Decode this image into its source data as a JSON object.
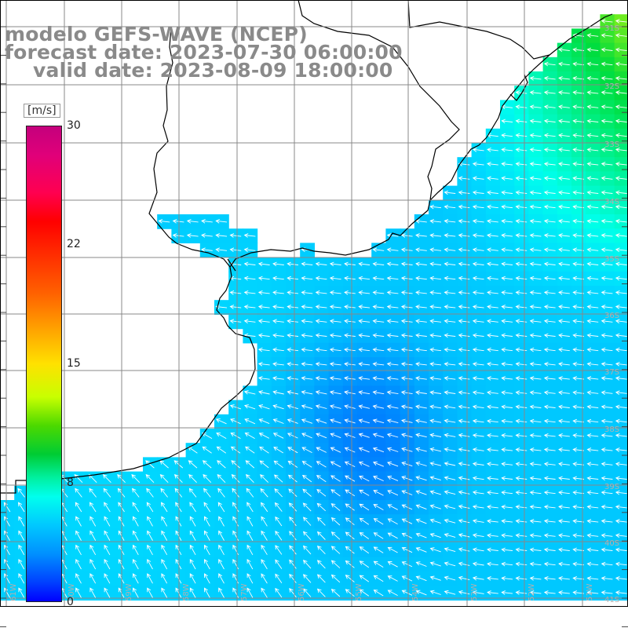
{
  "title": {
    "model": "modelo GEFS-WAVE (NCEP)",
    "forecast": "forecast date: 2023-07-30 06:00:00",
    "valid": "valid date: 2023-08-09 18:00:00"
  },
  "colorbar": {
    "unit": "[m/s]",
    "ticks": [
      {
        "value": 30,
        "label": "30"
      },
      {
        "value": 22,
        "label": "22"
      },
      {
        "value": 15,
        "label": "15"
      },
      {
        "value": 8,
        "label": "8"
      },
      {
        "value": 0,
        "label": "0"
      }
    ]
  },
  "grid": {
    "longitude_labels": [
      "61W",
      "60W",
      "59W",
      "58W",
      "57W",
      "56W",
      "55W",
      "54W",
      "53W",
      "52W",
      "51W"
    ],
    "latitude_labels": [
      "31S",
      "32S",
      "33S",
      "34S",
      "35S",
      "36S",
      "37S",
      "38S",
      "39S",
      "40S",
      "41S"
    ]
  },
  "colors": {
    "land": "#ffffff",
    "coastline": "#000000",
    "grid": "#888888",
    "arrows": "#ffffff",
    "title": "#8a8a8a"
  }
}
